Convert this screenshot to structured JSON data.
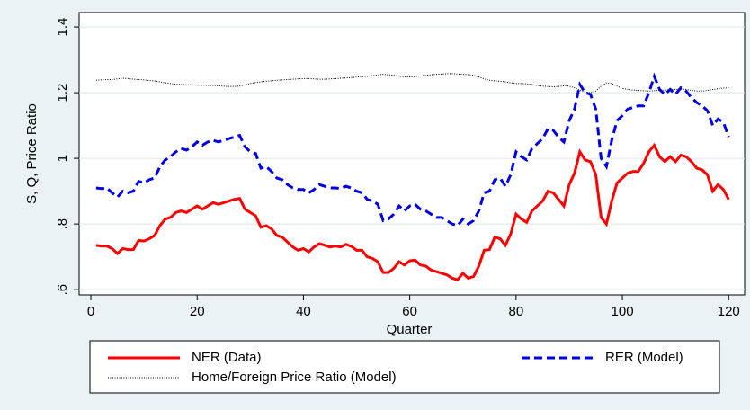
{
  "chart_data": {
    "type": "line",
    "x_label": "Quarter",
    "y_label": "S, Q, Price Ratio",
    "x": [
      1,
      2,
      3,
      4,
      5,
      6,
      7,
      8,
      9,
      10,
      11,
      12,
      13,
      14,
      15,
      16,
      17,
      18,
      19,
      20,
      21,
      22,
      23,
      24,
      25,
      26,
      27,
      28,
      29,
      30,
      31,
      32,
      33,
      34,
      35,
      36,
      37,
      38,
      39,
      40,
      41,
      42,
      43,
      44,
      45,
      46,
      47,
      48,
      49,
      50,
      51,
      52,
      53,
      54,
      55,
      56,
      57,
      58,
      59,
      60,
      61,
      62,
      63,
      64,
      65,
      66,
      67,
      68,
      69,
      70,
      71,
      72,
      73,
      74,
      75,
      76,
      77,
      78,
      79,
      80,
      81,
      82,
      83,
      84,
      85,
      86,
      87,
      88,
      89,
      90,
      91,
      92,
      93,
      94,
      95,
      96,
      97,
      98,
      99,
      100,
      101,
      102,
      103,
      104,
      105,
      106,
      107,
      108,
      109,
      110,
      111,
      112,
      113,
      114,
      115,
      116,
      117,
      118,
      119,
      120
    ],
    "series": [
      {
        "name": "NER (Data)",
        "color": "#ff0000",
        "style": "solid",
        "values": [
          0.735,
          0.733,
          0.733,
          0.725,
          0.71,
          0.725,
          0.722,
          0.722,
          0.75,
          0.748,
          0.755,
          0.765,
          0.795,
          0.815,
          0.82,
          0.835,
          0.84,
          0.835,
          0.845,
          0.855,
          0.845,
          0.855,
          0.865,
          0.86,
          0.865,
          0.87,
          0.875,
          0.878,
          0.845,
          0.835,
          0.825,
          0.79,
          0.795,
          0.785,
          0.765,
          0.76,
          0.745,
          0.73,
          0.72,
          0.725,
          0.715,
          0.73,
          0.74,
          0.735,
          0.73,
          0.733,
          0.73,
          0.738,
          0.732,
          0.72,
          0.72,
          0.7,
          0.695,
          0.685,
          0.652,
          0.652,
          0.665,
          0.685,
          0.675,
          0.688,
          0.69,
          0.675,
          0.672,
          0.66,
          0.655,
          0.65,
          0.645,
          0.635,
          0.63,
          0.65,
          0.635,
          0.64,
          0.672,
          0.72,
          0.722,
          0.76,
          0.755,
          0.735,
          0.77,
          0.83,
          0.815,
          0.805,
          0.84,
          0.855,
          0.87,
          0.9,
          0.895,
          0.875,
          0.855,
          0.92,
          0.955,
          1.02,
          0.995,
          0.99,
          0.95,
          0.82,
          0.8,
          0.87,
          0.925,
          0.94,
          0.955,
          0.96,
          0.96,
          0.985,
          1.02,
          1.04,
          1.005,
          0.99,
          1.005,
          0.99,
          1.01,
          1.005,
          0.99,
          0.97,
          0.965,
          0.95,
          0.9,
          0.92,
          0.905,
          0.875
        ]
      },
      {
        "name": "RER (Model)",
        "color": "#0000e6",
        "style": "dashed",
        "values": [
          0.91,
          0.908,
          0.91,
          0.895,
          0.882,
          0.9,
          0.895,
          0.9,
          0.93,
          0.925,
          0.935,
          0.94,
          0.975,
          0.995,
          1.005,
          1.02,
          1.03,
          1.025,
          1.035,
          1.05,
          1.04,
          1.05,
          1.055,
          1.05,
          1.055,
          1.06,
          1.065,
          1.07,
          1.035,
          1.02,
          1.015,
          0.97,
          0.975,
          0.96,
          0.94,
          0.935,
          0.92,
          0.91,
          0.905,
          0.905,
          0.895,
          0.905,
          0.92,
          0.915,
          0.91,
          0.91,
          0.908,
          0.915,
          0.91,
          0.9,
          0.895,
          0.875,
          0.87,
          0.86,
          0.81,
          0.815,
          0.83,
          0.855,
          0.84,
          0.855,
          0.86,
          0.845,
          0.84,
          0.83,
          0.82,
          0.82,
          0.81,
          0.8,
          0.795,
          0.815,
          0.8,
          0.81,
          0.84,
          0.895,
          0.9,
          0.935,
          0.94,
          0.915,
          0.95,
          1.02,
          1.005,
          0.995,
          1.03,
          1.045,
          1.06,
          1.09,
          1.085,
          1.065,
          1.05,
          1.115,
          1.15,
          1.225,
          1.2,
          1.195,
          1.15,
          1.0,
          0.975,
          1.055,
          1.115,
          1.13,
          1.15,
          1.155,
          1.16,
          1.16,
          1.2,
          1.25,
          1.21,
          1.195,
          1.21,
          1.195,
          1.215,
          1.205,
          1.185,
          1.17,
          1.16,
          1.145,
          1.1,
          1.12,
          1.11,
          1.065
        ]
      },
      {
        "name": "Home/Foreign Price Ratio (Model)",
        "color": "#000000",
        "style": "dotted",
        "values": [
          1.238,
          1.239,
          1.24,
          1.24,
          1.242,
          1.244,
          1.243,
          1.241,
          1.24,
          1.239,
          1.237,
          1.236,
          1.233,
          1.23,
          1.228,
          1.226,
          1.225,
          1.224,
          1.224,
          1.223,
          1.223,
          1.222,
          1.222,
          1.221,
          1.22,
          1.219,
          1.219,
          1.22,
          1.224,
          1.228,
          1.231,
          1.233,
          1.235,
          1.236,
          1.238,
          1.239,
          1.24,
          1.241,
          1.242,
          1.243,
          1.243,
          1.242,
          1.241,
          1.241,
          1.242,
          1.243,
          1.244,
          1.245,
          1.246,
          1.248,
          1.249,
          1.25,
          1.252,
          1.254,
          1.256,
          1.255,
          1.253,
          1.25,
          1.248,
          1.248,
          1.249,
          1.251,
          1.253,
          1.255,
          1.256,
          1.257,
          1.258,
          1.258,
          1.257,
          1.256,
          1.255,
          1.253,
          1.248,
          1.242,
          1.238,
          1.236,
          1.235,
          1.233,
          1.23,
          1.228,
          1.228,
          1.227,
          1.225,
          1.222,
          1.22,
          1.219,
          1.218,
          1.219,
          1.221,
          1.22,
          1.215,
          1.208,
          1.202,
          1.2,
          1.205,
          1.22,
          1.23,
          1.228,
          1.22,
          1.213,
          1.21,
          1.208,
          1.207,
          1.206,
          1.205,
          1.206,
          1.207,
          1.208,
          1.209,
          1.21,
          1.211,
          1.21,
          1.207,
          1.205,
          1.205,
          1.207,
          1.21,
          1.212,
          1.214,
          1.215
        ]
      }
    ],
    "xlim": [
      -2.2,
      123
    ],
    "xticks": [
      0,
      20,
      40,
      60,
      80,
      100,
      120
    ],
    "ylim": [
      0.584,
      1.444
    ],
    "yticks": [
      {
        "value": 0.6,
        "label": ".6"
      },
      {
        "value": 0.8,
        "label": ".8"
      },
      1,
      1.2,
      1.4
    ],
    "grid": true
  }
}
